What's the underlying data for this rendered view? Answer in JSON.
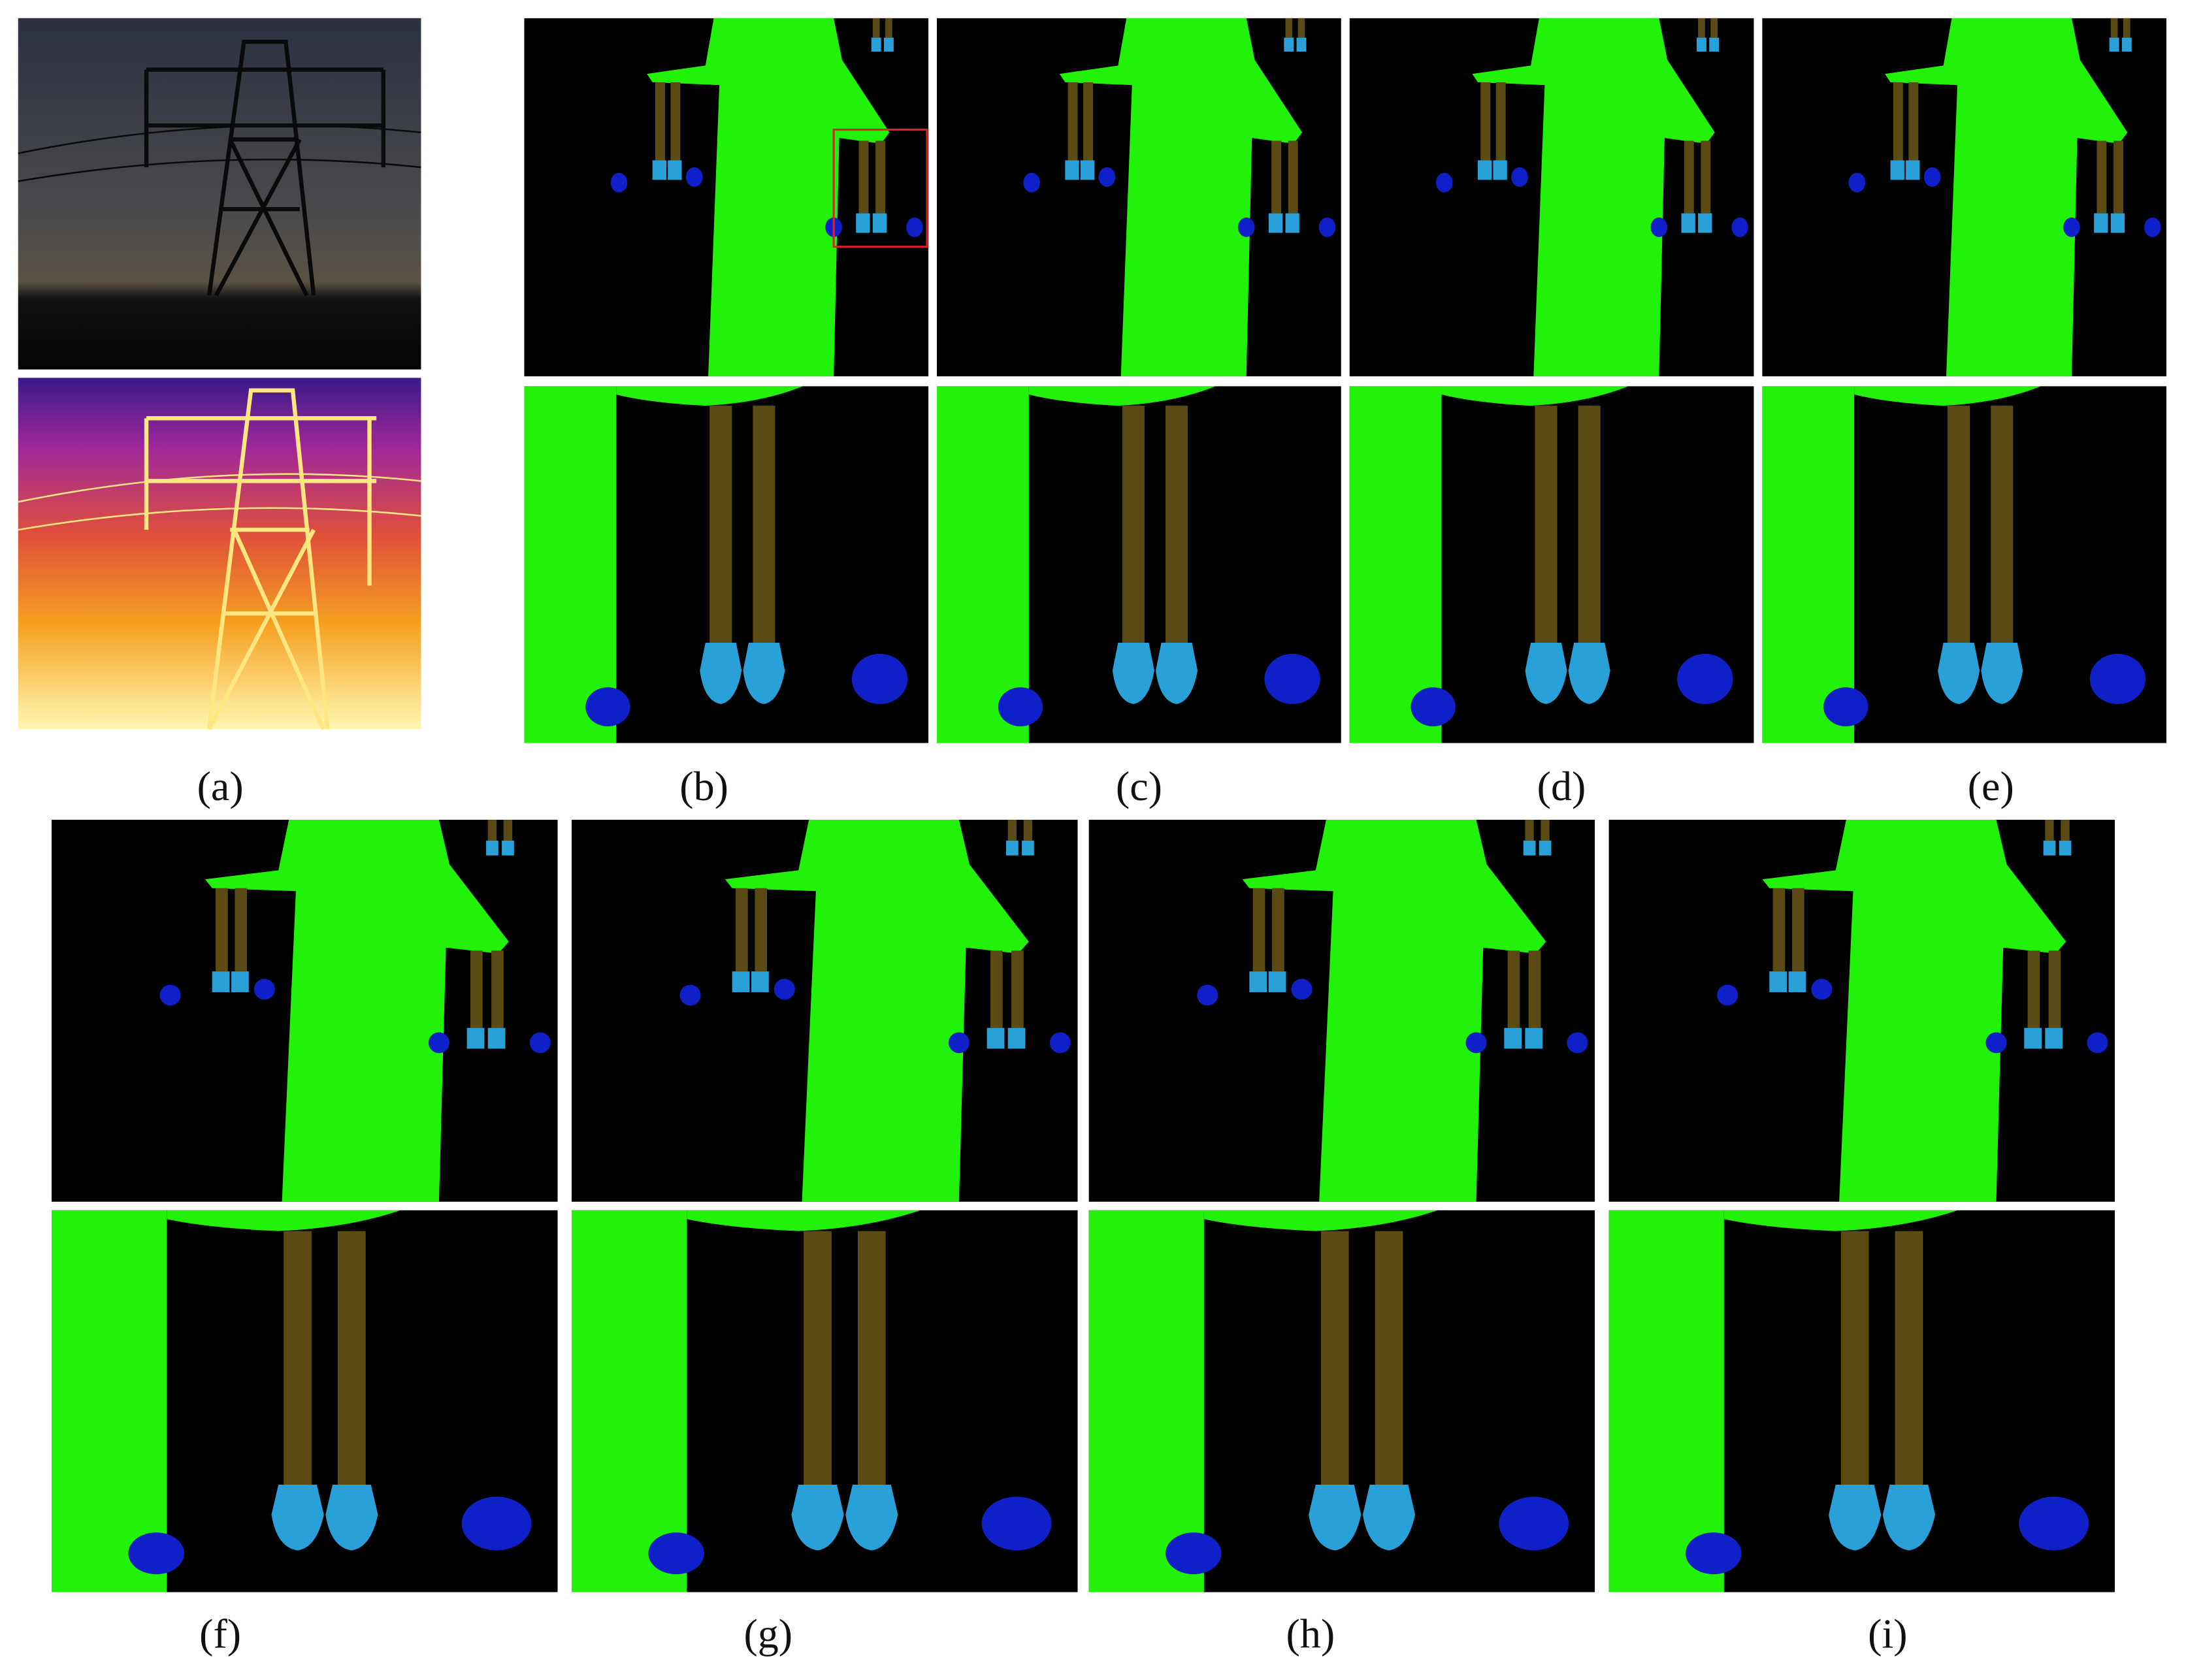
{
  "figure": {
    "panels": [
      {
        "label": "(a)"
      },
      {
        "label": "(b)"
      },
      {
        "label": "(c)"
      },
      {
        "label": "(d)"
      },
      {
        "label": "(e)"
      },
      {
        "label": "(f)"
      },
      {
        "label": "(g)"
      },
      {
        "label": "(h)"
      },
      {
        "label": "(i)"
      }
    ]
  }
}
